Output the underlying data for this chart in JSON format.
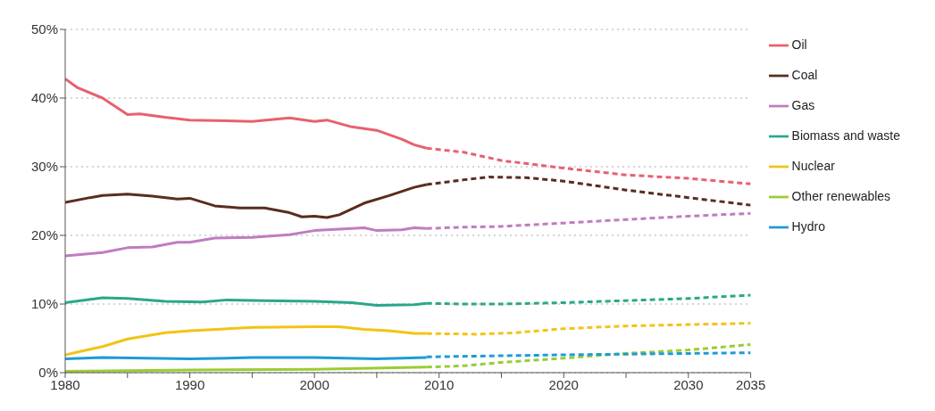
{
  "chart_data": {
    "type": "line",
    "xlim": [
      1980,
      2035
    ],
    "xticks": [
      1980,
      {
        "value": 1985,
        "label": null
      },
      1990,
      {
        "value": 1995,
        "label": null
      },
      2000,
      {
        "value": 2005,
        "label": null
      },
      2010,
      {
        "value": 2015,
        "label": null
      },
      2020,
      {
        "value": 2025,
        "label": null
      },
      2030,
      2035
    ],
    "ylim": [
      0,
      50
    ],
    "yticks": [
      {
        "value": 0,
        "label": "0%"
      },
      {
        "value": 10,
        "label": "10%"
      },
      {
        "value": 20,
        "label": "20%"
      },
      {
        "value": 30,
        "label": "30%"
      },
      {
        "value": 40,
        "label": "40%"
      },
      {
        "value": 50,
        "label": "50%"
      }
    ],
    "grid": "y",
    "legend": "right",
    "marker": "none",
    "series": [
      {
        "name": "Oil",
        "color": "#e8616e",
        "line_style": "solid",
        "x": [
          1980,
          1981,
          1983,
          1985,
          1986,
          1988,
          1990,
          1995,
          1998,
          2000,
          2001,
          2003,
          2005,
          2007,
          2008,
          2009
        ],
        "values": [
          42.8,
          41.5,
          40,
          37.6,
          37.7,
          37.2,
          36.8,
          36.6,
          37.1,
          36.6,
          36.8,
          35.8,
          35.3,
          34,
          33.2,
          32.7
        ]
      },
      {
        "name": "Coal",
        "color": "#5a2d1e",
        "line_style": "solid",
        "x": [
          1980,
          1982,
          1983,
          1985,
          1987,
          1989,
          1990,
          1992,
          1994,
          1996,
          1998,
          1999,
          2000,
          2001,
          2002,
          2004,
          2006,
          2008,
          2009
        ],
        "values": [
          24.8,
          25.5,
          25.8,
          26.0,
          25.7,
          25.3,
          25.4,
          24.3,
          24.0,
          24.0,
          23.3,
          22.7,
          22.8,
          22.6,
          23.0,
          24.7,
          25.8,
          27.0,
          27.4
        ]
      },
      {
        "name": "Gas",
        "color": "#c07cc0",
        "line_style": "solid",
        "x": [
          1980,
          1983,
          1985,
          1987,
          1989,
          1990,
          1992,
          1995,
          1998,
          2000,
          2002,
          2004,
          2005,
          2007,
          2008,
          2009
        ],
        "values": [
          17.0,
          17.5,
          18.2,
          18.3,
          19.0,
          19.0,
          19.6,
          19.7,
          20.1,
          20.7,
          20.9,
          21.1,
          20.7,
          20.8,
          21.1,
          21.0
        ]
      },
      {
        "name": "Biomass and waste",
        "color": "#2aa889",
        "line_style": "solid",
        "x": [
          1980,
          1983,
          1985,
          1988,
          1991,
          1993,
          1996,
          2000,
          2003,
          2005,
          2008,
          2009
        ],
        "values": [
          10.2,
          10.9,
          10.8,
          10.4,
          10.3,
          10.6,
          10.5,
          10.4,
          10.2,
          9.8,
          9.9,
          10.1
        ]
      },
      {
        "name": "Nuclear",
        "color": "#f2c318",
        "line_style": "solid",
        "x": [
          1980,
          1982,
          1983,
          1985,
          1988,
          1990,
          1995,
          2000,
          2002,
          2004,
          2006,
          2008,
          2009
        ],
        "values": [
          2.6,
          3.4,
          3.8,
          4.9,
          5.8,
          6.1,
          6.6,
          6.7,
          6.7,
          6.3,
          6.1,
          5.7,
          5.7
        ]
      },
      {
        "name": "Other renewables",
        "color": "#9acd32",
        "line_style": "solid",
        "x": [
          1980,
          1990,
          2000,
          2009
        ],
        "values": [
          0.2,
          0.4,
          0.5,
          0.8
        ]
      },
      {
        "name": "Hydro",
        "color": "#1e9bd7",
        "line_style": "solid",
        "x": [
          1980,
          1983,
          1990,
          1995,
          2000,
          2005,
          2009
        ],
        "values": [
          2.0,
          2.2,
          2.0,
          2.2,
          2.2,
          2.0,
          2.2
        ]
      },
      {
        "color": "#e8616e",
        "line_style": "dashed",
        "x": [
          2009,
          2012,
          2015,
          2020,
          2025,
          2030,
          2035
        ],
        "values": [
          32.7,
          32.1,
          30.9,
          29.8,
          28.8,
          28.3,
          27.5
        ]
      },
      {
        "color": "#5a2d1e",
        "line_style": "dashed",
        "x": [
          2009,
          2012,
          2014,
          2017,
          2020,
          2025,
          2030,
          2035
        ],
        "values": [
          27.4,
          28.1,
          28.5,
          28.4,
          27.9,
          26.6,
          25.5,
          24.4
        ]
      },
      {
        "color": "#c07cc0",
        "line_style": "dashed",
        "x": [
          2009,
          2012,
          2015,
          2020,
          2025,
          2030,
          2035
        ],
        "values": [
          21.0,
          21.2,
          21.3,
          21.8,
          22.3,
          22.8,
          23.2
        ]
      },
      {
        "color": "#2aa889",
        "line_style": "dashed",
        "x": [
          2009,
          2012,
          2015,
          2020,
          2025,
          2030,
          2035
        ],
        "values": [
          10.1,
          10.0,
          10.0,
          10.2,
          10.5,
          10.8,
          11.3
        ]
      },
      {
        "color": "#f2c318",
        "line_style": "dashed",
        "x": [
          2009,
          2013,
          2016,
          2020,
          2025,
          2030,
          2035
        ],
        "values": [
          5.7,
          5.6,
          5.8,
          6.4,
          6.8,
          7.0,
          7.2
        ]
      },
      {
        "color": "#9acd32",
        "line_style": "dashed",
        "x": [
          2009,
          2012,
          2015,
          2020,
          2025,
          2030,
          2035
        ],
        "values": [
          0.8,
          1.0,
          1.5,
          2.1,
          2.8,
          3.3,
          4.1
        ]
      },
      {
        "color": "#1e9bd7",
        "line_style": "dashed",
        "x": [
          2009,
          2020,
          2035
        ],
        "values": [
          2.3,
          2.6,
          2.9
        ]
      }
    ]
  }
}
